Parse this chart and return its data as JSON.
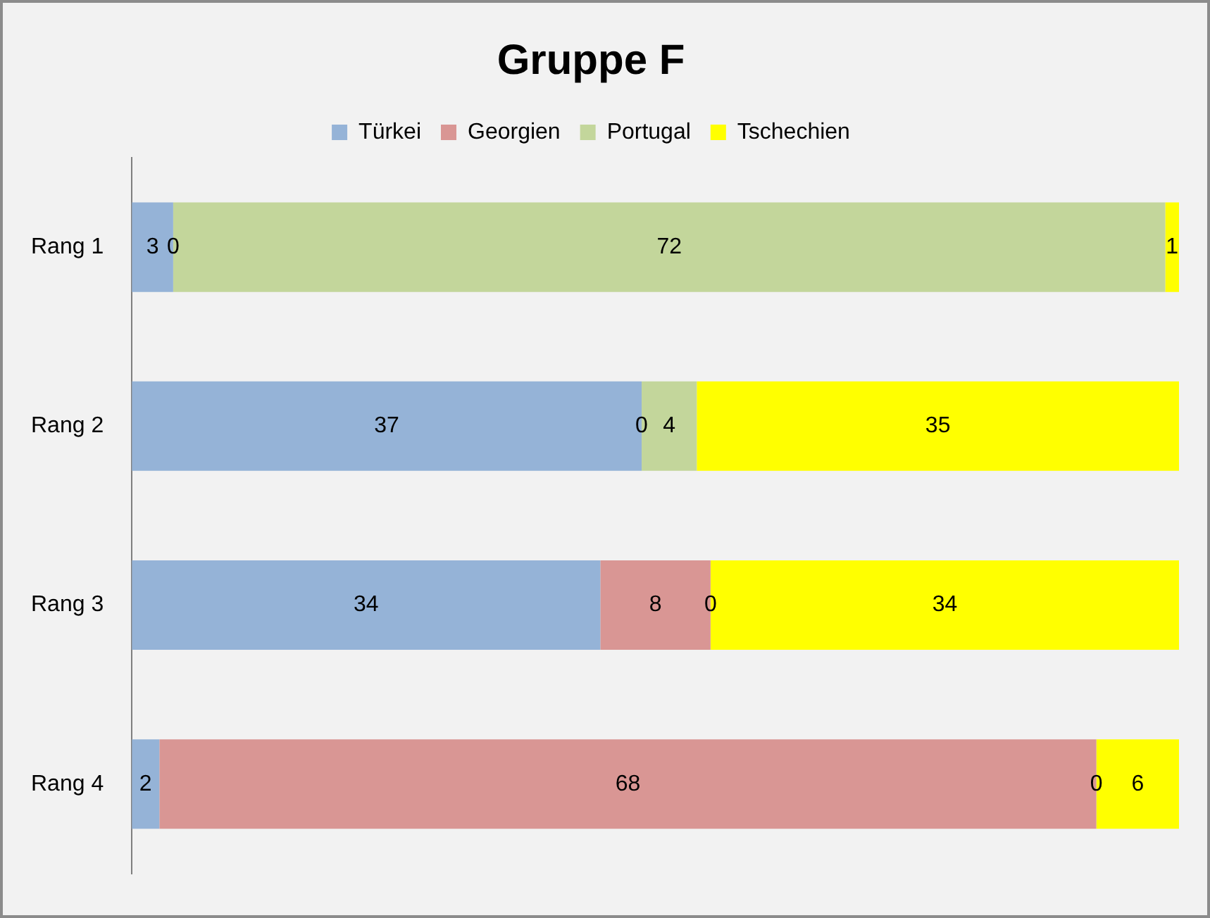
{
  "chart_data": {
    "type": "bar",
    "orientation": "horizontal",
    "stacked": true,
    "title": "Gruppe F",
    "categories": [
      "Rang 1",
      "Rang 2",
      "Rang 3",
      "Rang 4"
    ],
    "series": [
      {
        "name": "Türkei",
        "color": "#95b3d7",
        "values": [
          3,
          37,
          34,
          2
        ],
        "value_labels": [
          "3",
          "37",
          "34",
          "2"
        ]
      },
      {
        "name": "Georgien",
        "color": "#d99694",
        "values": [
          0,
          0,
          8,
          68
        ],
        "value_labels": [
          null,
          null,
          "8",
          "68"
        ]
      },
      {
        "name": "Portugal",
        "color": "#c3d69b",
        "values": [
          72,
          4,
          0,
          0
        ],
        "value_labels": [
          "72",
          "4",
          null,
          null
        ]
      },
      {
        "name": "Tschechien",
        "color": "#ffff00",
        "values": [
          1,
          35,
          34,
          6
        ],
        "value_labels": [
          "1",
          "35",
          "34",
          "6"
        ]
      }
    ],
    "annotations": [
      {
        "text": "0",
        "x": 3,
        "y": "Rang 1"
      },
      {
        "text": "0",
        "x": 37,
        "y": "Rang 2"
      },
      {
        "text": "0",
        "x": 42,
        "y": "Rang 3"
      },
      {
        "text": "0",
        "x": 70,
        "y": "Rang 4"
      }
    ],
    "xlim": [
      0,
      76
    ],
    "legend": "top",
    "tick_labels": "y"
  }
}
